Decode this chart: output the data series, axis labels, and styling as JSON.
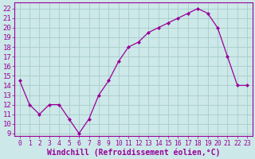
{
  "x": [
    0,
    1,
    2,
    3,
    4,
    5,
    6,
    7,
    8,
    9,
    10,
    11,
    12,
    13,
    14,
    15,
    16,
    17,
    18,
    19,
    20,
    21,
    22,
    23
  ],
  "y": [
    14.5,
    12.0,
    11.0,
    12.0,
    12.0,
    10.5,
    9.0,
    10.5,
    13.0,
    14.5,
    16.5,
    18.0,
    18.5,
    19.5,
    20.0,
    20.5,
    21.0,
    21.5,
    22.0,
    21.5,
    20.0,
    17.0,
    14.0,
    14.0
  ],
  "line_color": "#990099",
  "marker": "D",
  "marker_size": 2.0,
  "bg_color": "#cce8e8",
  "grid_color": "#aacccc",
  "xlabel": "Windchill (Refroidissement éolien,°C)",
  "ylabel_ticks": [
    9,
    10,
    11,
    12,
    13,
    14,
    15,
    16,
    17,
    18,
    19,
    20,
    21,
    22
  ],
  "ylim": [
    8.7,
    22.6
  ],
  "xlim": [
    -0.5,
    23.5
  ],
  "tick_color": "#990099",
  "label_color": "#990099",
  "xlabel_fontsize": 7.0,
  "ytick_fontsize": 6.5,
  "xtick_fontsize": 5.8
}
